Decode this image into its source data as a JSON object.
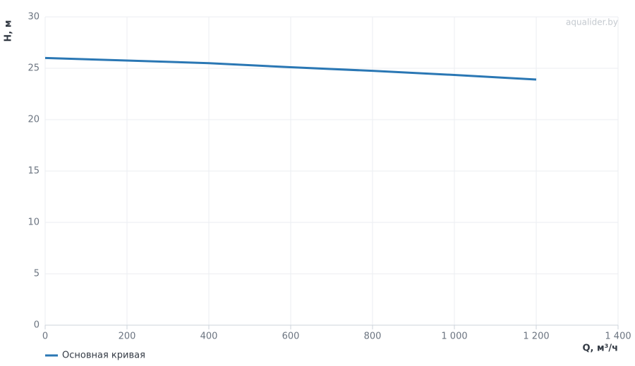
{
  "chart_data": {
    "type": "line",
    "x_label": "Q, м³/ч",
    "y_label": "H, м",
    "watermark": "aqualider.by",
    "x": [
      0,
      200,
      400,
      600,
      800,
      1000,
      1200
    ],
    "series": [
      {
        "name": "Основная кривая",
        "color": "#2a77b4",
        "values": [
          26,
          25.75,
          25.5,
          25.1,
          24.75,
          24.35,
          23.9
        ]
      }
    ],
    "xlim": [
      0,
      1400
    ],
    "ylim": [
      0,
      30
    ],
    "xticks": [
      0,
      200,
      400,
      600,
      800,
      {
        "value": 1000,
        "label": "1 000"
      },
      {
        "value": 1200,
        "label": "1 200"
      },
      {
        "value": 1400,
        "label": "1 400"
      }
    ],
    "yticks": [
      0,
      5,
      10,
      15,
      20,
      25,
      30
    ],
    "grid": true,
    "legend": "bottom-left"
  }
}
